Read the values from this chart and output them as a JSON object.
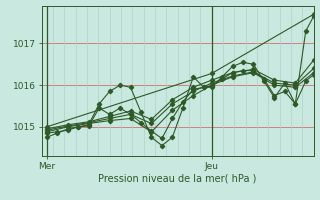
{
  "bg_color": "#c8e8e0",
  "grid_color_h": "#d08080",
  "grid_color_v": "#b0d0c8",
  "line_color": "#2d5a27",
  "marker_color": "#2d5a27",
  "ylabel_ticks": [
    1015,
    1016,
    1017
  ],
  "ylim": [
    1014.3,
    1017.9
  ],
  "xlabel": "Pression niveau de la mer( hPa )",
  "x_tick_labels": [
    "Mer",
    "Jeu"
  ],
  "x_tick_positions": [
    0.0,
    0.63
  ],
  "xlim": [
    -0.02,
    1.02
  ],
  "n_vgrid": 24,
  "series": [
    [
      0.0,
      1014.75,
      0.04,
      1014.85,
      0.08,
      1014.95,
      0.12,
      1015.0,
      0.16,
      1015.05,
      0.2,
      1015.55,
      0.24,
      1015.85,
      0.28,
      1016.0,
      0.32,
      1015.95,
      0.36,
      1015.35,
      0.4,
      1014.75,
      0.44,
      1014.55,
      0.48,
      1014.75,
      0.52,
      1015.45,
      0.56,
      1016.2,
      0.6,
      1015.95,
      0.63,
      1015.95,
      0.67,
      1016.2,
      0.71,
      1016.45,
      0.75,
      1016.55,
      0.79,
      1016.5,
      0.83,
      1016.1,
      0.87,
      1015.7,
      0.91,
      1016.05,
      0.95,
      1015.55,
      0.99,
      1017.3,
      1.02,
      1017.65
    ],
    [
      0.0,
      1014.85,
      0.04,
      1014.88,
      0.08,
      1014.92,
      0.12,
      1015.0,
      0.16,
      1015.02,
      0.2,
      1015.45,
      0.24,
      1015.3,
      0.28,
      1015.45,
      0.32,
      1015.3,
      0.36,
      1015.1,
      0.4,
      1014.9,
      0.44,
      1014.72,
      0.48,
      1015.2,
      0.52,
      1015.6,
      0.56,
      1015.9,
      0.6,
      1015.95,
      0.63,
      1015.98,
      0.67,
      1016.15,
      0.71,
      1016.3,
      0.75,
      1016.35,
      0.79,
      1016.35,
      0.83,
      1016.15,
      0.87,
      1015.75,
      0.91,
      1015.85,
      0.95,
      1015.55,
      0.99,
      1016.1,
      1.02,
      1016.25
    ],
    [
      0.0,
      1014.88,
      0.08,
      1015.0,
      0.16,
      1015.08,
      0.24,
      1015.15,
      0.32,
      1015.2,
      0.4,
      1014.88,
      0.48,
      1015.4,
      0.56,
      1015.75,
      0.63,
      1016.0,
      0.71,
      1016.2,
      0.79,
      1016.3,
      0.87,
      1016.0,
      0.95,
      1015.95,
      1.02,
      1016.3
    ],
    [
      0.0,
      1014.92,
      0.08,
      1015.02,
      0.16,
      1015.1,
      0.24,
      1015.2,
      0.32,
      1015.3,
      0.4,
      1015.08,
      0.48,
      1015.55,
      0.56,
      1015.85,
      0.63,
      1016.05,
      0.71,
      1016.22,
      0.79,
      1016.32,
      0.87,
      1016.05,
      0.95,
      1016.0,
      1.02,
      1016.4
    ],
    [
      0.0,
      1014.95,
      0.08,
      1015.05,
      0.16,
      1015.12,
      0.24,
      1015.25,
      0.32,
      1015.38,
      0.4,
      1015.18,
      0.48,
      1015.65,
      0.56,
      1015.95,
      0.63,
      1016.12,
      0.71,
      1016.3,
      0.79,
      1016.38,
      0.87,
      1016.12,
      0.95,
      1016.05,
      1.02,
      1016.6
    ],
    [
      0.0,
      1015.0,
      0.63,
      1016.28,
      1.02,
      1017.7
    ]
  ]
}
